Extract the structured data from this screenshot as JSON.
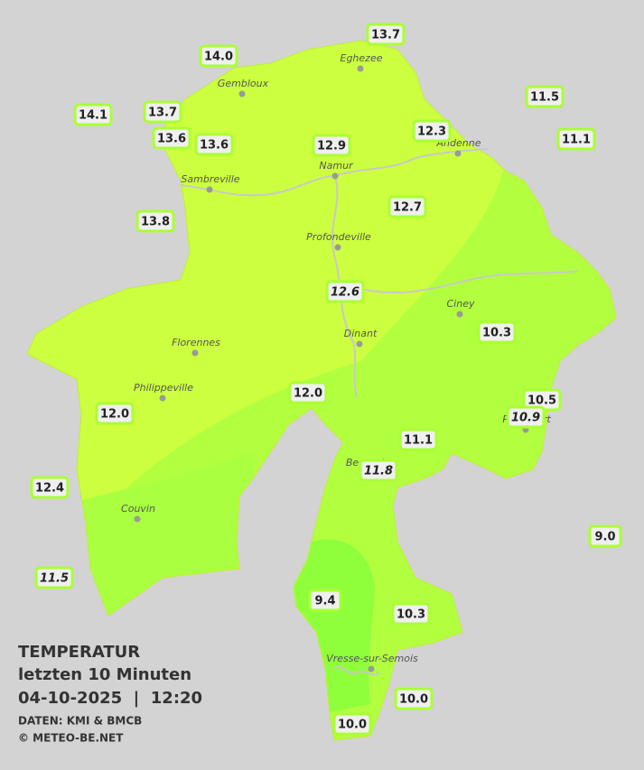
{
  "legend": {
    "title": "TEMPERATUR",
    "subtitle": "letzten 10 Minuten",
    "datetime": "04-10-2025  |  12:20",
    "source": "DATEN: KMI & BMCB",
    "copyright": "© METEO-BE.NET"
  },
  "cities": [
    "Eghezee",
    "Gembloux",
    "Andenne",
    "Namur",
    "Sambreville",
    "Profondeville",
    "Ciney",
    "Dinant",
    "Florennes",
    "Philippeville",
    "Rochefort",
    "Beauraing",
    "Couvin",
    "Vresse-sur-Semois"
  ],
  "stations": [
    {
      "label": "13.7",
      "italic": false
    },
    {
      "label": "14.0",
      "italic": false
    },
    {
      "label": "11.5",
      "italic": false
    },
    {
      "label": "14.1",
      "italic": false
    },
    {
      "label": "13.7",
      "italic": false
    },
    {
      "label": "13.6",
      "italic": false
    },
    {
      "label": "13.6",
      "italic": false
    },
    {
      "label": "12.3",
      "italic": false
    },
    {
      "label": "11.1",
      "italic": false
    },
    {
      "label": "12.9",
      "italic": false
    },
    {
      "label": "12.7",
      "italic": false
    },
    {
      "label": "13.8",
      "italic": false
    },
    {
      "label": "12.6",
      "italic": true
    },
    {
      "label": "10.3",
      "italic": false
    },
    {
      "label": "12.0",
      "italic": false
    },
    {
      "label": "10.5",
      "italic": false
    },
    {
      "label": "10.9",
      "italic": true
    },
    {
      "label": "12.0",
      "italic": false
    },
    {
      "label": "11.1",
      "italic": false
    },
    {
      "label": "11.8",
      "italic": true
    },
    {
      "label": "12.4",
      "italic": false
    },
    {
      "label": "9.0",
      "italic": false
    },
    {
      "label": "11.5",
      "italic": true
    },
    {
      "label": "9.4",
      "italic": false
    },
    {
      "label": "10.3",
      "italic": false
    },
    {
      "label": "10.0",
      "italic": false
    },
    {
      "label": "10.0",
      "italic": false
    }
  ]
}
